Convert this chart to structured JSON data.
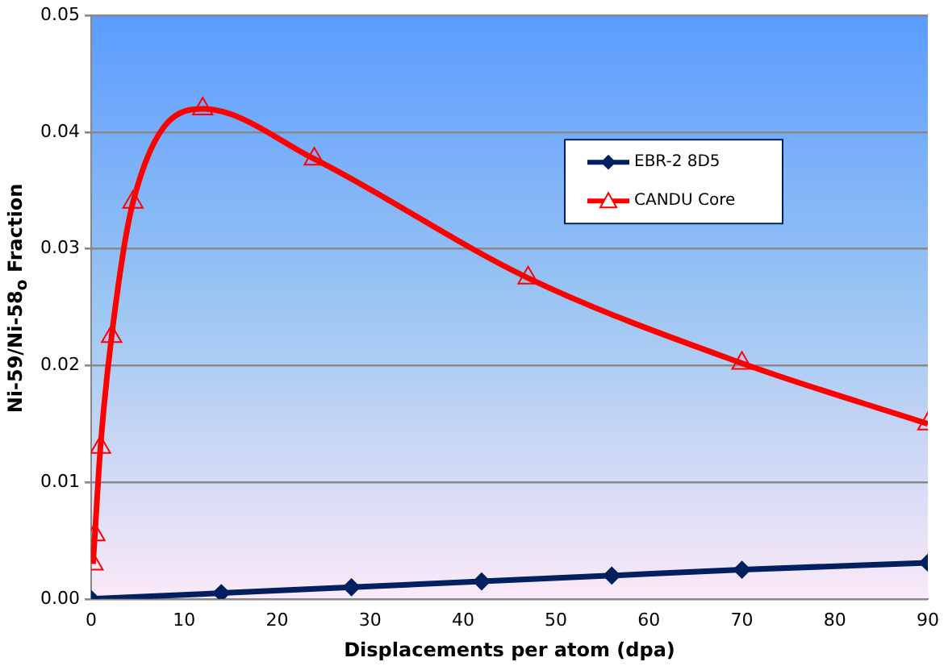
{
  "chart_data": {
    "type": "line",
    "xlabel": "Displacements per atom (dpa)",
    "ylabel": "Ni-59/Ni-58$_{o}$ Fraction",
    "xlim": [
      0,
      90
    ],
    "xticks": [
      0,
      10,
      20,
      30,
      40,
      50,
      60,
      70,
      80,
      90
    ],
    "ylim": [
      0,
      0.05
    ],
    "yticks": [
      {
        "value": 0,
        "label": "0.00"
      },
      {
        "value": 0.01,
        "label": "0.01"
      },
      {
        "value": 0.02,
        "label": "0.02"
      },
      {
        "value": 0.03,
        "label": "0.03"
      },
      {
        "value": 0.04,
        "label": "0.04"
      },
      {
        "value": 0.05,
        "label": "0.05"
      }
    ],
    "grid": "y",
    "legend": "top right",
    "line_style": "solid",
    "series": [
      {
        "name": "EBR-2 8D5",
        "color": "#002060",
        "marker": "diamond",
        "x": [
          0,
          14,
          28,
          42,
          56,
          70,
          90
        ],
        "values": [
          0,
          0.0005,
          0.001,
          0.0015,
          0.002,
          0.0025,
          0.0031
        ]
      },
      {
        "name": "CANDU Core",
        "color": "#ff0000",
        "marker": "triangle",
        "x": [
          0.2,
          0.4,
          1,
          2.2,
          4.5,
          12,
          24,
          47,
          70,
          90
        ],
        "values": [
          0.003,
          0.0055,
          0.013,
          0.0225,
          0.034,
          0.042,
          0.0377,
          0.0275,
          0.0202,
          0.015
        ]
      }
    ]
  }
}
